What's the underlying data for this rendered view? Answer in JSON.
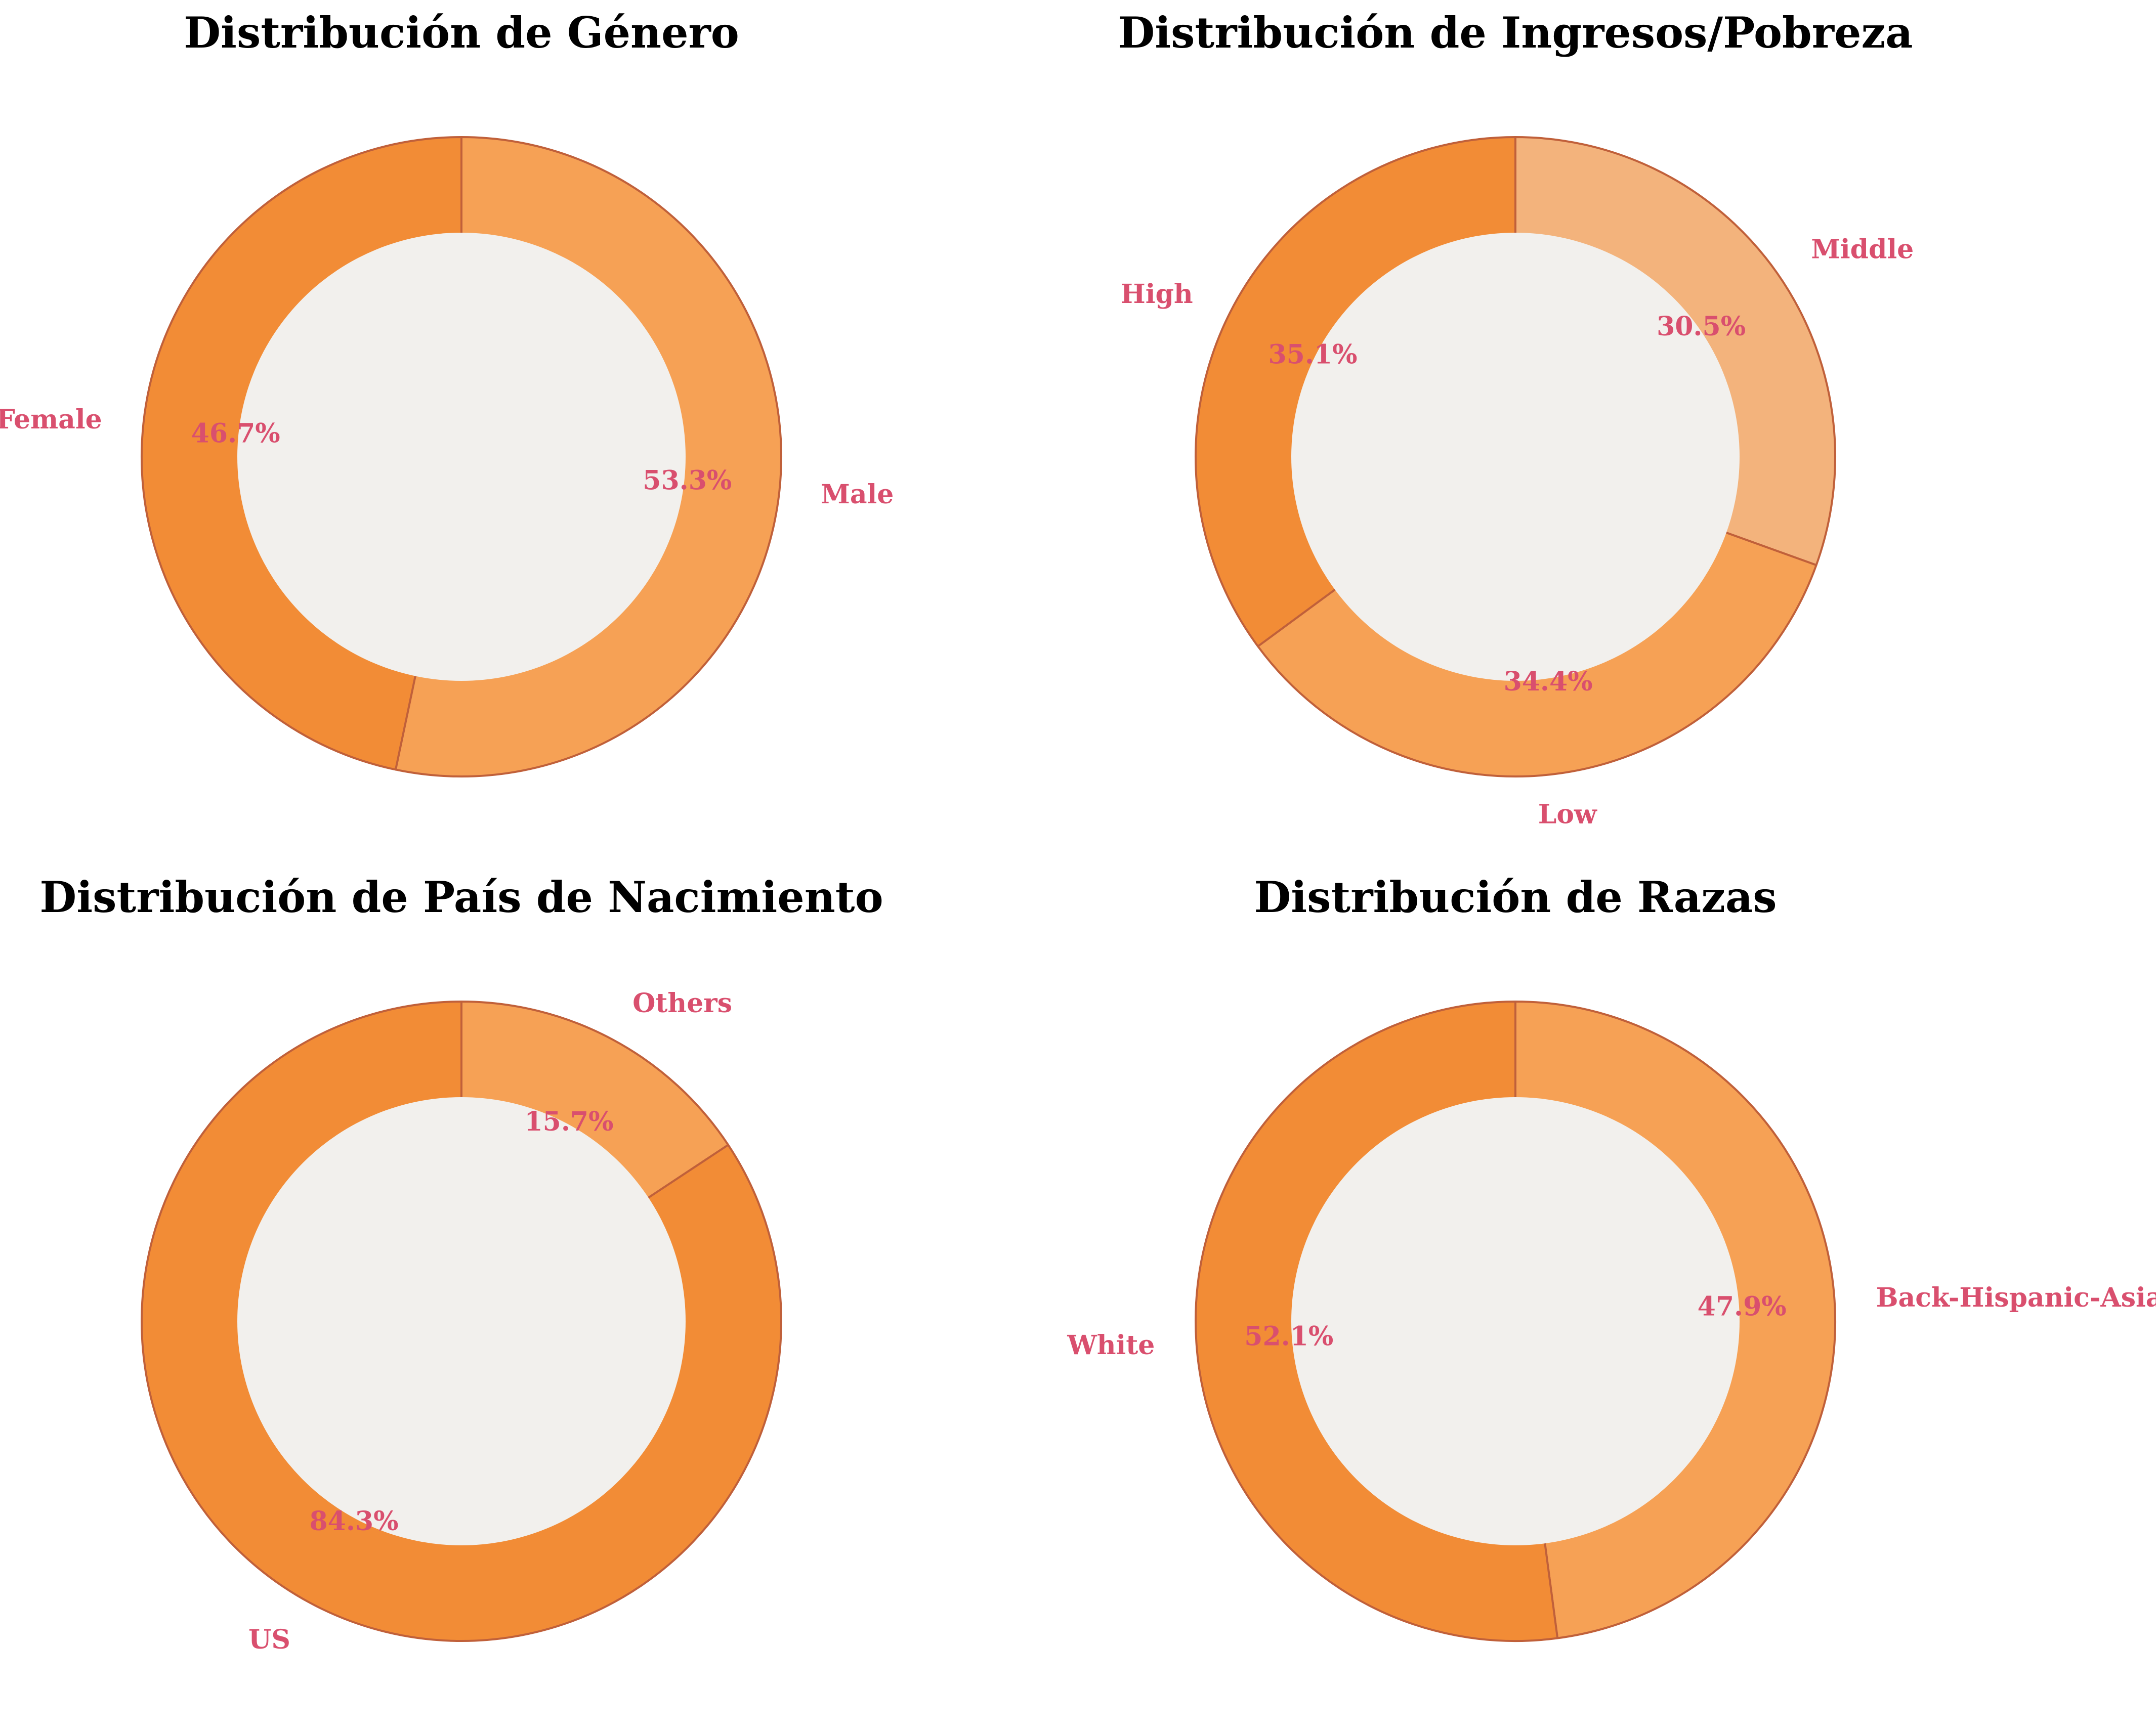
{
  "colors": {
    "text": "#D94F6E",
    "edge": "#C0603A",
    "hole": "#F2F0ED"
  },
  "chart_data": [
    {
      "type": "pie",
      "style": "donut",
      "title": "Distribución de Género",
      "categories": [
        "Male",
        "Female"
      ],
      "values": [
        53.3,
        46.7
      ],
      "labels": [
        "53.3%",
        "46.7%"
      ],
      "colors": [
        "#F6A155",
        "#F28C36"
      ],
      "start": "12 o'clock",
      "direction": "clockwise"
    },
    {
      "type": "pie",
      "style": "donut",
      "title": "Distribución de Ingresos/Pobreza",
      "categories": [
        "Middle",
        "Low",
        "High"
      ],
      "values": [
        30.5,
        34.4,
        35.1
      ],
      "labels": [
        "30.5%",
        "34.4%",
        "35.1%"
      ],
      "colors": [
        "#F3B37C",
        "#F6A155",
        "#F28C36"
      ],
      "start": "12 o'clock",
      "direction": "clockwise"
    },
    {
      "type": "pie",
      "style": "donut",
      "title": "Distribución de País de Nacimiento",
      "categories": [
        "Others",
        "US"
      ],
      "values": [
        15.7,
        84.3
      ],
      "labels": [
        "15.7%",
        "84.3%"
      ],
      "colors": [
        "#F6A155",
        "#F28C36"
      ],
      "start": "12 o'clock",
      "direction": "clockwise"
    },
    {
      "type": "pie",
      "style": "donut",
      "title": "Distribución de Razas",
      "categories": [
        "Back-Hispanic-Asian",
        "White"
      ],
      "values": [
        47.9,
        52.1
      ],
      "labels": [
        "47.9%",
        "52.1%"
      ],
      "colors": [
        "#F6A155",
        "#F28C36"
      ],
      "start": "12 o'clock",
      "direction": "clockwise"
    }
  ]
}
